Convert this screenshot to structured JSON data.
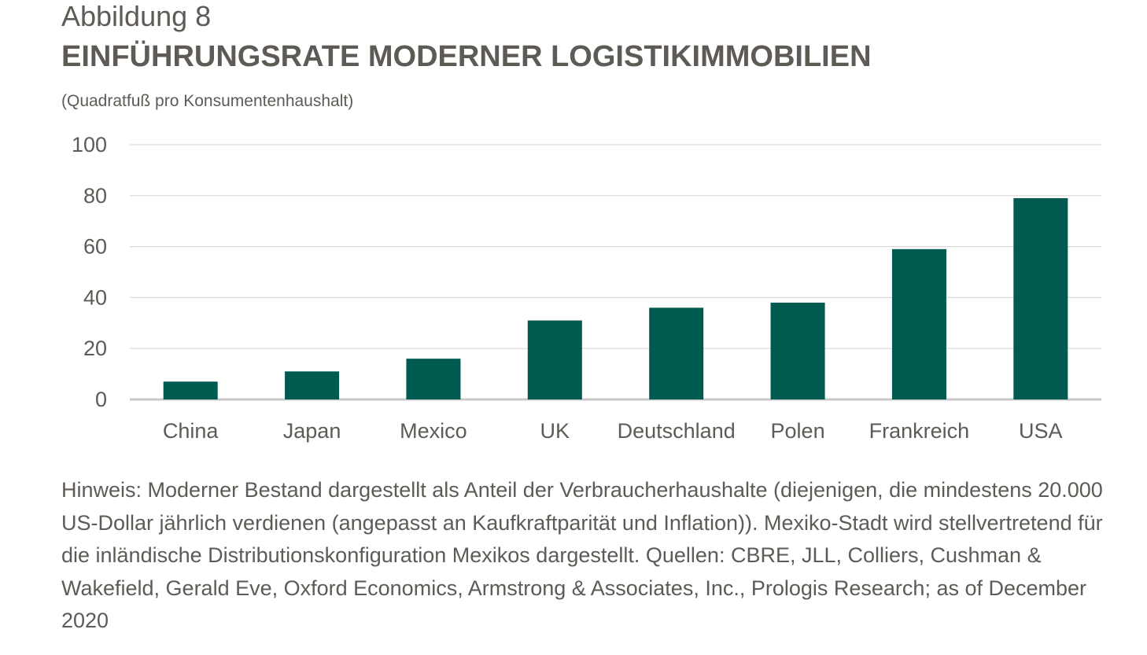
{
  "figure_label": "Abbildung 8",
  "note": "Hinweis: Moderner Bestand dargestellt als Anteil der Verbraucherhaushalte (diejenigen, die mindestens 20.000 US-Dollar jährlich verdienen (angepasst an Kaufkraftparität und Inflation)). Mexiko-Stadt wird stellvertretend für die inländische Distributionskonfiguration Mexikos dargestellt. Quellen: CBRE, JLL, Colliers, Cushman & Wakefield, Gerald Eve, Oxford Economics, Armstrong & Associates, Inc., Prologis Research; as of December 2020",
  "chart_data": {
    "type": "bar",
    "title": "EINFÜHRUNGSRATE MODERNER LOGISTIKIMMOBILIEN",
    "subtitle": "(Quadratfuß pro Konsumentenhaushalt)",
    "xlabel": "",
    "ylabel": "",
    "categories": [
      "China",
      "Japan",
      "Mexico",
      "UK",
      "Deutschland",
      "Polen",
      "Frankreich",
      "USA"
    ],
    "values": [
      7,
      11,
      16,
      31,
      36,
      38,
      59,
      79
    ],
    "ylim": [
      0,
      100
    ],
    "yticks": [
      0,
      20,
      40,
      60,
      80,
      100
    ],
    "ytick_labels": [
      "0",
      "20",
      "40",
      "60",
      "80",
      "100"
    ],
    "grid": true,
    "legend": "none",
    "colors": {
      "bar": "#005a4f",
      "grid": "#d9d9d9",
      "axis": "#c8c8c8",
      "text": "#5e5a55"
    }
  }
}
